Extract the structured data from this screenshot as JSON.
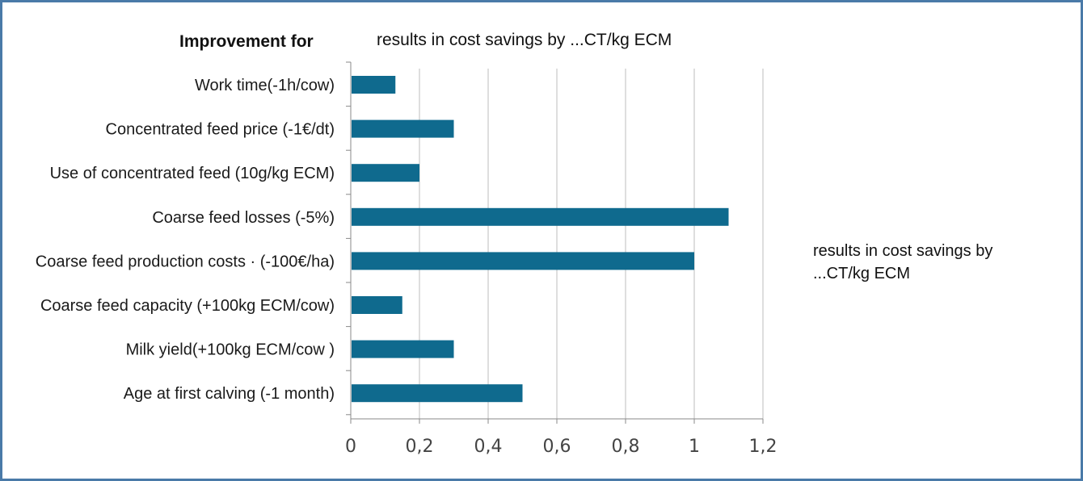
{
  "header": {
    "left": "Improvement for",
    "title": "results in cost savings by ...CT/kg ECM"
  },
  "side_note": {
    "line1": "results in cost savings by",
    "line2": "...CT/kg ECM"
  },
  "colors": {
    "bar": "#0f6a8e",
    "grid": "#bdbdbd",
    "axis": "#8a8a8a",
    "border": "#4a7aa8"
  },
  "chart_data": {
    "type": "bar",
    "orientation": "horizontal",
    "title": "results in cost savings by ...CT/kg ECM",
    "categories": [
      "Work time(-1h/cow)",
      "Concentrated feed price   (-1€/dt)",
      "Use of concentrated feed  (10g/kg ECM)",
      "Coarse  feed losses  (-5%)",
      "Coarse feed production costs · (-100€/ha)",
      "Coarse feed capacity (+100kg  ECM/cow)",
      "Milk yield(+100kg ECM/cow )",
      "Age at first calving (-1 month)"
    ],
    "values": [
      0.13,
      0.3,
      0.2,
      1.1,
      1.0,
      0.15,
      0.3,
      0.5
    ],
    "xlim": [
      0,
      1.2
    ],
    "ticks": [
      {
        "v": 0,
        "label": "0"
      },
      {
        "v": 0.2,
        "label": "0,2"
      },
      {
        "v": 0.4,
        "label": "0,4"
      },
      {
        "v": 0.6,
        "label": "0,6"
      },
      {
        "v": 0.8,
        "label": "0,8"
      },
      {
        "v": 1.0,
        "label": "1"
      },
      {
        "v": 1.2,
        "label": "1,2"
      }
    ],
    "grid": true,
    "legend": "none"
  }
}
